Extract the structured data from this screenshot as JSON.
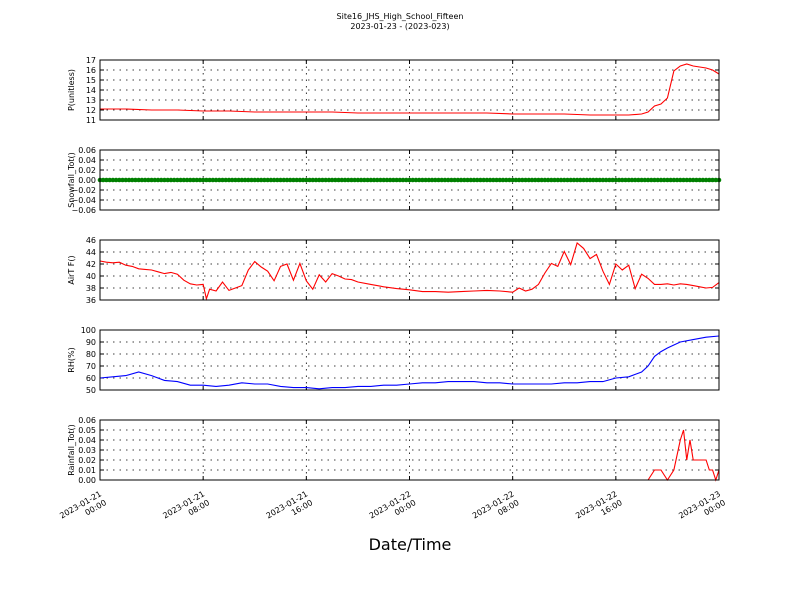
{
  "figure": {
    "title_line1": "Site16_JHS_High_School_Fifteen",
    "title_line2": "2023-01-23 - (2023-023)",
    "xlabel": "Date/Time",
    "x_ticks": [
      {
        "l1": "2023-01-21",
        "l2": "00:00",
        "h": 0
      },
      {
        "l1": "2023-01-21",
        "l2": "08:00",
        "h": 8
      },
      {
        "l1": "2023-01-21",
        "l2": "16:00",
        "h": 16
      },
      {
        "l1": "2023-01-22",
        "l2": "00:00",
        "h": 24
      },
      {
        "l1": "2023-01-22",
        "l2": "08:00",
        "h": 32
      },
      {
        "l1": "2023-01-22",
        "l2": "16:00",
        "h": 40
      },
      {
        "l1": "2023-01-23",
        "l2": "00:00",
        "h": 48
      }
    ]
  },
  "chart_data": [
    {
      "type": "line",
      "ylabel": "P(unitless)",
      "ylim": [
        11,
        17
      ],
      "yticks": [
        "11",
        "12",
        "13",
        "14",
        "15",
        "16",
        "17"
      ],
      "color": "#ff0000",
      "x_hours": [
        0,
        2,
        4,
        6,
        8,
        10,
        12,
        14,
        16,
        18,
        20,
        22,
        24,
        26,
        28,
        30,
        32,
        34,
        36,
        38,
        40,
        41,
        42,
        42.5,
        43,
        43.5,
        44,
        44.5,
        45,
        45.5,
        46,
        46.5,
        47,
        47.5,
        48
      ],
      "values": [
        12.1,
        12.1,
        12.0,
        12.0,
        11.9,
        11.9,
        11.8,
        11.8,
        11.8,
        11.8,
        11.7,
        11.7,
        11.7,
        11.7,
        11.7,
        11.7,
        11.6,
        11.6,
        11.6,
        11.5,
        11.5,
        11.5,
        11.6,
        11.8,
        12.4,
        12.6,
        13.2,
        15.9,
        16.4,
        16.6,
        16.4,
        16.3,
        16.2,
        16.0,
        15.6
      ]
    },
    {
      "type": "scatter",
      "ylabel": "Snowfall_Tot()",
      "ylim": [
        -0.06,
        0.06
      ],
      "yticks": [
        "−0.06",
        "−0.04",
        "−0.02",
        "0.00",
        "0.02",
        "0.04",
        "0.06"
      ],
      "color": "#008000",
      "x_start": 0,
      "x_end": 48,
      "x_step": 0.25,
      "constant_value": 0.0
    },
    {
      "type": "line",
      "ylabel": "AirT F()",
      "ylim": [
        36,
        46
      ],
      "yticks": [
        "36",
        "38",
        "40",
        "42",
        "44",
        "46"
      ],
      "color": "#ff0000",
      "x_hours": [
        0,
        0.5,
        1,
        1.5,
        2,
        2.5,
        3,
        3.5,
        4,
        4.5,
        5,
        5.5,
        6,
        6.5,
        7,
        7.5,
        8,
        8.25,
        8.5,
        9,
        9.5,
        10,
        10.5,
        11,
        11.5,
        12,
        12.5,
        13,
        13.5,
        14,
        14.5,
        15,
        15.5,
        16,
        16.5,
        17,
        17.5,
        18,
        18.5,
        19,
        19.5,
        20,
        21,
        22,
        23,
        24,
        25,
        26,
        27,
        28,
        29,
        30,
        31,
        32,
        32.5,
        33,
        33.5,
        34,
        34.5,
        35,
        35.5,
        36,
        36.5,
        37,
        37.5,
        38,
        38.5,
        39,
        39.5,
        40,
        40.5,
        41,
        41.5,
        42,
        42.5,
        43,
        43.5,
        44,
        44.5,
        45,
        45.5,
        46,
        46.5,
        47,
        47.5,
        48
      ],
      "values": [
        42.5,
        42.3,
        42.2,
        42.3,
        41.8,
        41.6,
        41.2,
        41.1,
        41.0,
        40.7,
        40.4,
        40.6,
        40.3,
        39.3,
        38.7,
        38.5,
        38.6,
        36.2,
        37.8,
        37.5,
        39.0,
        37.6,
        38.0,
        38.4,
        41.0,
        42.4,
        41.5,
        40.8,
        39.2,
        41.6,
        42.0,
        39.3,
        42.1,
        39.2,
        37.8,
        40.2,
        39.0,
        40.4,
        40.0,
        39.5,
        39.4,
        39.0,
        38.6,
        38.2,
        37.9,
        37.7,
        37.4,
        37.4,
        37.3,
        37.4,
        37.5,
        37.6,
        37.5,
        37.3,
        38.0,
        37.5,
        37.8,
        38.6,
        40.5,
        42.1,
        41.6,
        44.1,
        41.9,
        45.5,
        44.6,
        42.9,
        43.6,
        40.8,
        38.6,
        42.0,
        41.0,
        41.8,
        37.9,
        40.3,
        39.6,
        38.6,
        38.6,
        38.7,
        38.5,
        38.7,
        38.6,
        38.4,
        38.2,
        38.0,
        38.1,
        38.9
      ]
    },
    {
      "type": "line",
      "ylabel": "RH(%)",
      "ylim": [
        50,
        100
      ],
      "yticks": [
        "50",
        "60",
        "70",
        "80",
        "90",
        "100"
      ],
      "color": "#0000ff",
      "x_hours": [
        0,
        1,
        2,
        3,
        4,
        5,
        6,
        7,
        8,
        9,
        10,
        11,
        12,
        13,
        14,
        15,
        16,
        17,
        18,
        19,
        20,
        21,
        22,
        23,
        24,
        25,
        26,
        27,
        28,
        29,
        30,
        31,
        32,
        33,
        34,
        35,
        36,
        37,
        38,
        39,
        40,
        41,
        42,
        42.5,
        43,
        43.5,
        44,
        45,
        46,
        47,
        48
      ],
      "values": [
        60,
        61,
        62,
        65,
        62,
        58,
        57,
        54,
        54,
        53,
        54,
        56,
        55,
        55,
        53,
        52,
        52,
        51,
        52,
        52,
        53,
        53,
        54,
        54,
        55,
        56,
        56,
        57,
        57,
        57,
        56,
        56,
        55,
        55,
        55,
        55,
        56,
        56,
        57,
        57,
        60,
        61,
        65,
        70,
        78,
        82,
        85,
        90,
        92,
        94,
        95
      ]
    },
    {
      "type": "line",
      "ylabel": "Rainfall_Tot()",
      "ylim": [
        0.0,
        0.06
      ],
      "yticks": [
        "0.00",
        "0.01",
        "0.02",
        "0.03",
        "0.04",
        "0.05",
        "0.06"
      ],
      "color": "#ff0000",
      "x_hours": [
        0,
        42.5,
        43,
        43.5,
        44,
        44.5,
        45,
        45.25,
        45.5,
        45.75,
        46,
        46.25,
        46.5,
        46.75,
        47,
        47.25,
        47.5,
        47.75,
        48
      ],
      "values": [
        0,
        0,
        0.01,
        0.01,
        0.0,
        0.01,
        0.04,
        0.05,
        0.02,
        0.04,
        0.02,
        0.02,
        0.02,
        0.02,
        0.02,
        0.01,
        0.01,
        0.0,
        0.01
      ]
    }
  ]
}
